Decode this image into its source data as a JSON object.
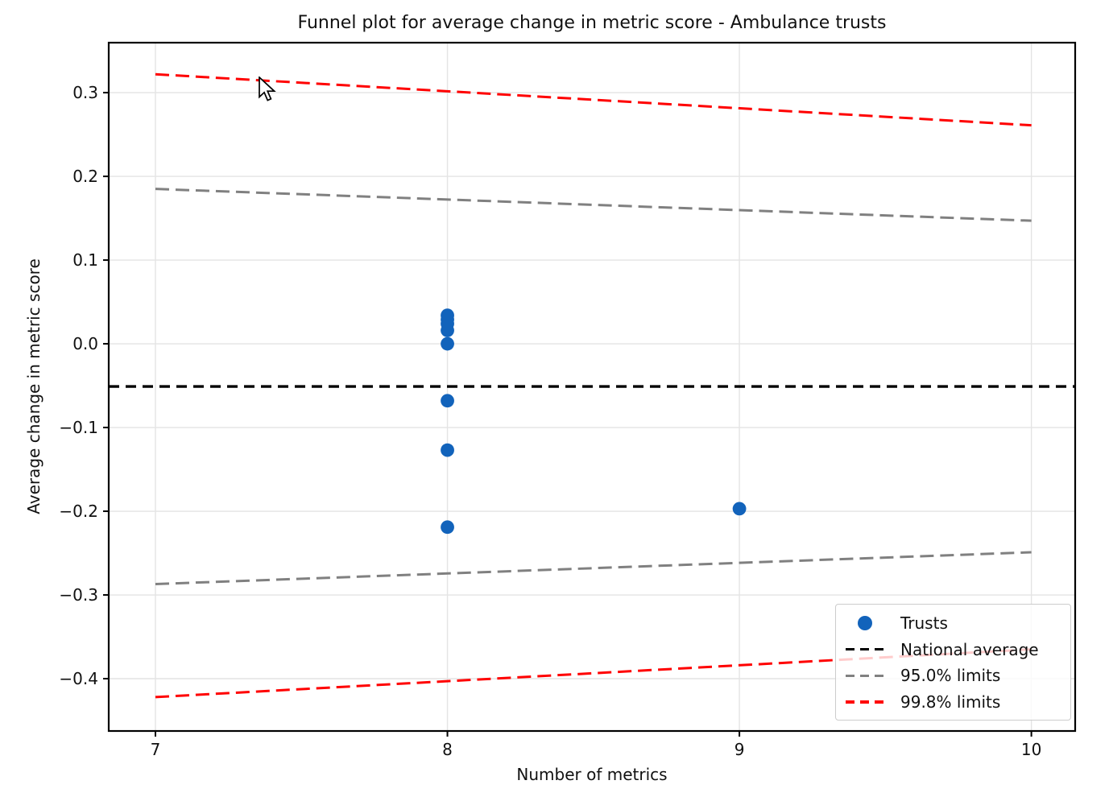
{
  "chart_data": {
    "type": "scatter",
    "title": "Funnel plot for average change in metric score - Ambulance trusts",
    "xlabel": "Number of metrics",
    "ylabel": "Average change in metric score",
    "xlim": [
      6.84,
      10.15
    ],
    "ylim": [
      -0.4625,
      0.3597
    ],
    "xticks": [
      "7",
      "8",
      "9",
      "10"
    ],
    "xtick_values": [
      7,
      8,
      9,
      10
    ],
    "yticks": [
      "0.3",
      "0.2",
      "0.1",
      "0.0",
      "−0.1",
      "−0.2",
      "−0.3",
      "−0.4"
    ],
    "ytick_values": [
      0.3,
      0.2,
      0.1,
      0.0,
      -0.1,
      -0.2,
      -0.3,
      -0.4
    ],
    "grid": true,
    "grid_color": "#e4e4e4",
    "colors": {
      "trusts": "#1263bb",
      "national_average": "#000000",
      "limits_95": "#808080",
      "limits_99_8": "#ff0000"
    },
    "series": [
      {
        "name": "Trusts",
        "type": "scatter",
        "color_key": "trusts",
        "points": [
          {
            "x": 8,
            "y": 0.034
          },
          {
            "x": 8,
            "y": 0.029
          },
          {
            "x": 8,
            "y": 0.024
          },
          {
            "x": 8,
            "y": 0.016
          },
          {
            "x": 8,
            "y": 0.0
          },
          {
            "x": 8,
            "y": -0.068
          },
          {
            "x": 8,
            "y": -0.127
          },
          {
            "x": 8,
            "y": -0.219
          },
          {
            "x": 9,
            "y": -0.197
          }
        ]
      },
      {
        "name": "National average",
        "type": "hline",
        "color_key": "national_average",
        "y": -0.051
      },
      {
        "name": "95.0% limits",
        "type": "limits",
        "color_key": "limits_95",
        "upper": [
          {
            "x": 7,
            "y": 0.185
          },
          {
            "x": 10,
            "y": 0.147
          }
        ],
        "lower": [
          {
            "x": 7,
            "y": -0.287
          },
          {
            "x": 10,
            "y": -0.249
          }
        ]
      },
      {
        "name": "99.8% limits",
        "type": "limits",
        "color_key": "limits_99_8",
        "upper": [
          {
            "x": 7,
            "y": 0.322
          },
          {
            "x": 10,
            "y": 0.261
          }
        ],
        "lower": [
          {
            "x": 7,
            "y": -0.422
          },
          {
            "x": 10,
            "y": -0.365
          }
        ]
      }
    ],
    "legend": {
      "position": "lower right",
      "items": [
        {
          "label": "Trusts",
          "marker": "dot",
          "color_key": "trusts"
        },
        {
          "label": "National average",
          "marker": "dash",
          "color_key": "national_average"
        },
        {
          "label": "95.0% limits",
          "marker": "dash",
          "color_key": "limits_95"
        },
        {
          "label": "99.8% limits",
          "marker": "dash",
          "color_key": "limits_99_8"
        }
      ]
    }
  }
}
